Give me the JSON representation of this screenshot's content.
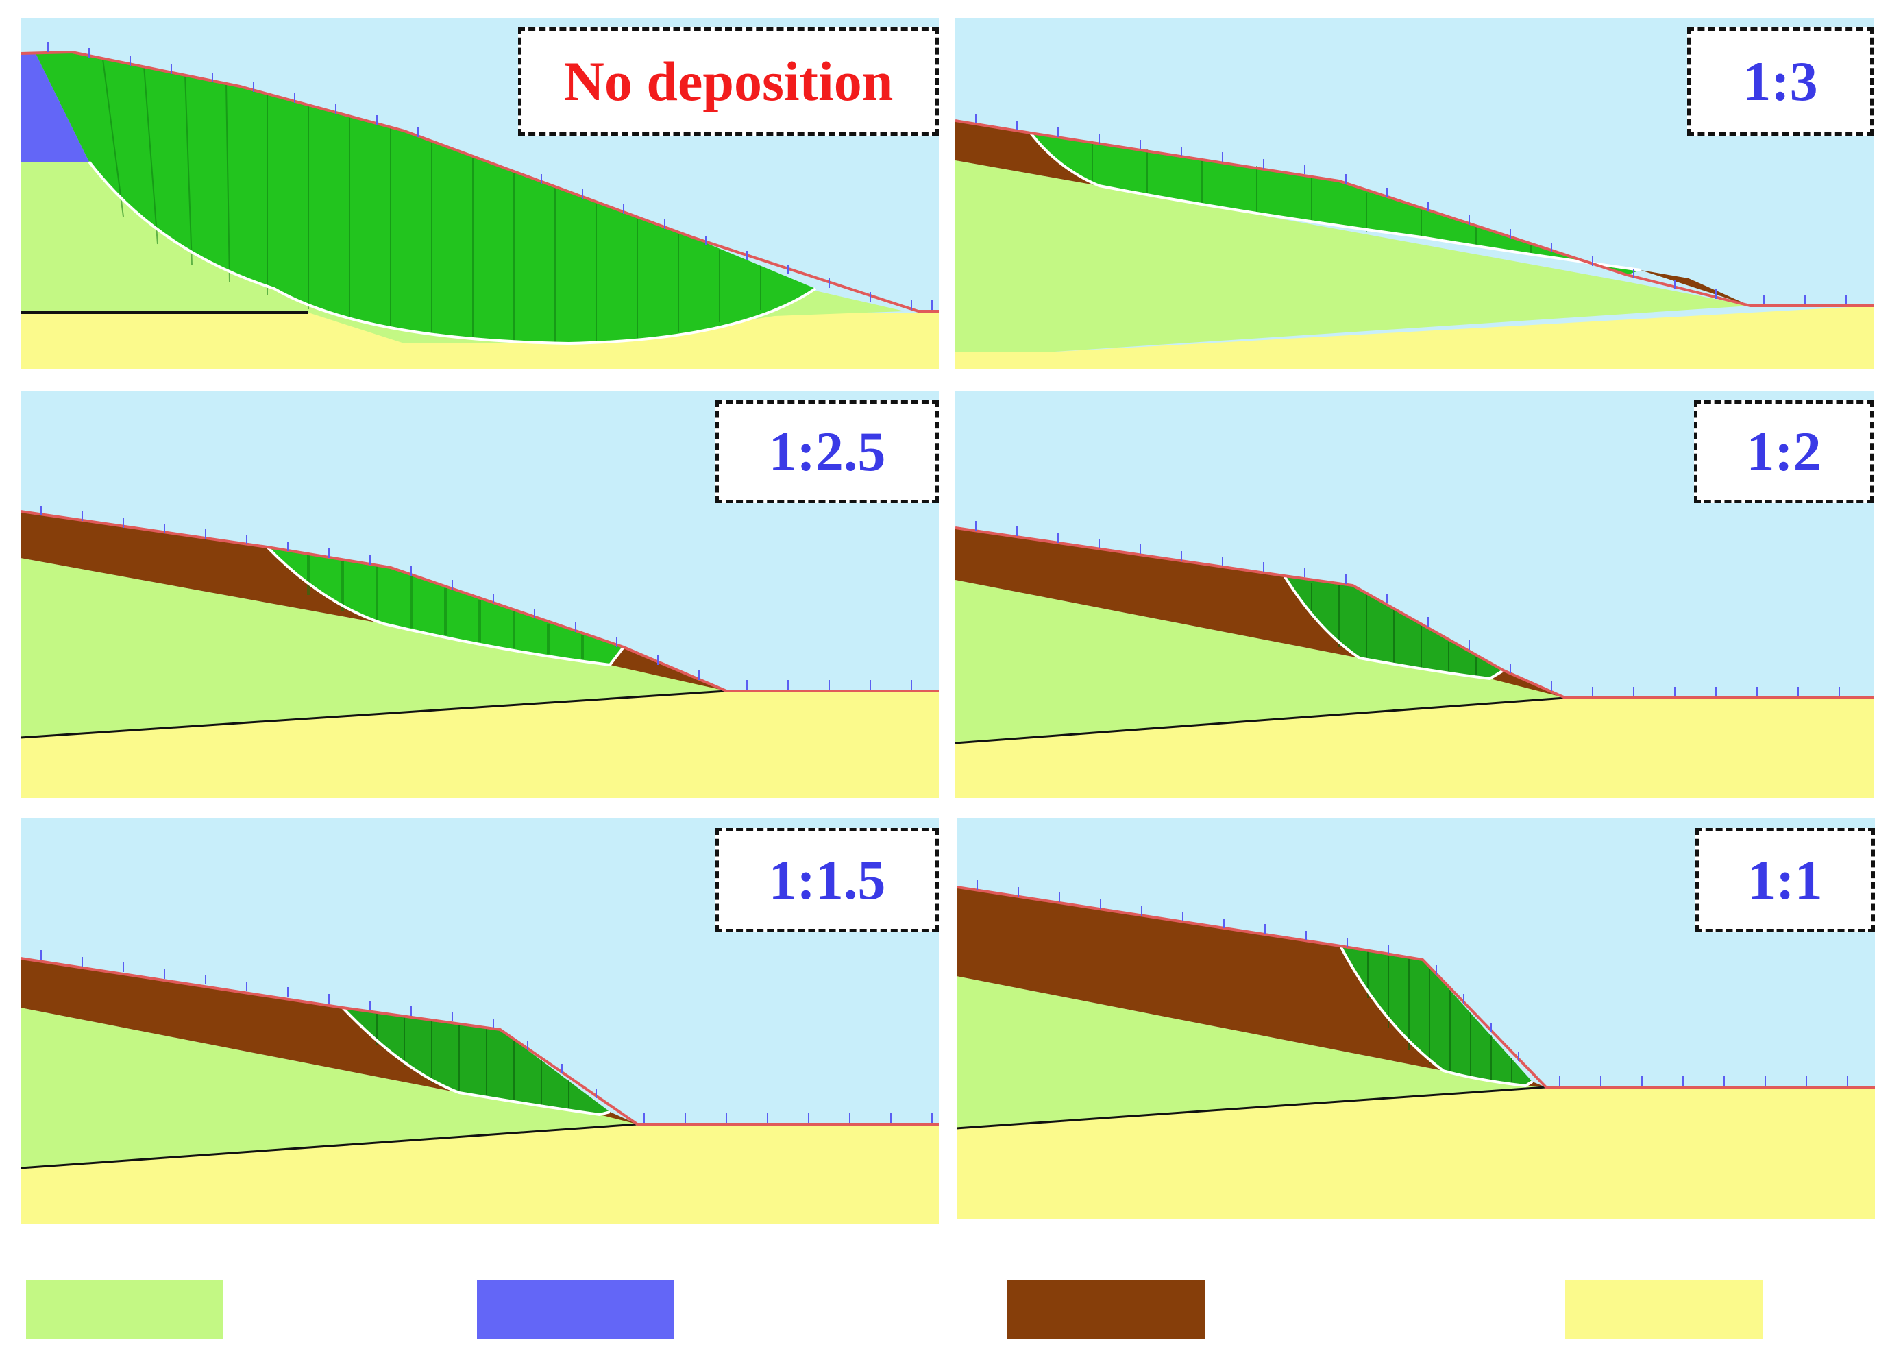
{
  "colors": {
    "sky": "#c8eefa",
    "fill_soil": "#c3f884",
    "bedrock": "#fbfa8c",
    "deposit": "#863e0a",
    "water": "#6366f7",
    "slide_mass": "#22c41e",
    "load_arrow": "#5b5ef2",
    "slope_surface": "#e05a5a",
    "label_red": "#f21c1c",
    "label_blue": "#3a3ae6"
  },
  "panels": [
    {
      "label": "No deposition",
      "label_color": "#f21c1c"
    },
    {
      "label": "1:3",
      "label_color": "#3a3ae6"
    },
    {
      "label": "1:2.5",
      "label_color": "#3a3ae6"
    },
    {
      "label": "1:2",
      "label_color": "#3a3ae6"
    },
    {
      "label": "1:1.5",
      "label_color": "#3a3ae6"
    },
    {
      "label": "1:1",
      "label_color": "#3a3ae6"
    }
  ],
  "legend": [
    {
      "color": "#c3f884"
    },
    {
      "color": "#6366f7"
    },
    {
      "color": "#863e0a"
    },
    {
      "color": "#fbfa8c"
    }
  ]
}
